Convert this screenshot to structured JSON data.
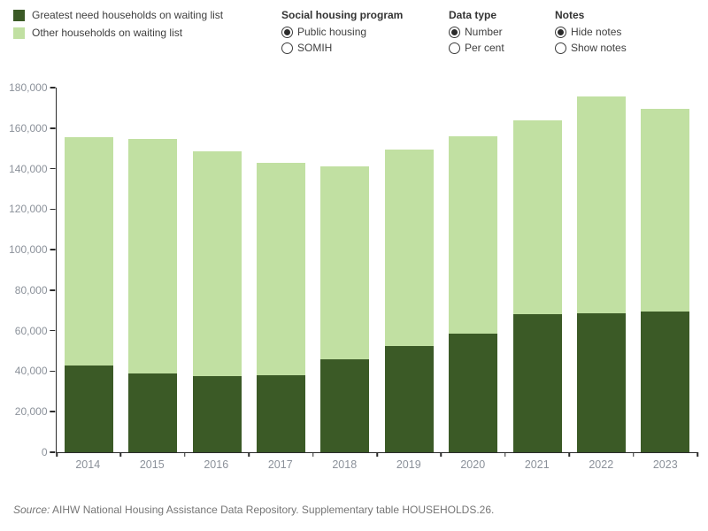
{
  "legend": {
    "items": [
      {
        "label": "Greatest need households on waiting list",
        "color": "#3b5a26"
      },
      {
        "label": "Other households on waiting list",
        "color": "#c1e0a2"
      }
    ]
  },
  "controls": [
    {
      "title": "Social housing program",
      "options": [
        {
          "label": "Public housing",
          "selected": true
        },
        {
          "label": "SOMIH",
          "selected": false
        }
      ]
    },
    {
      "title": "Data type",
      "options": [
        {
          "label": "Number",
          "selected": true
        },
        {
          "label": "Per cent",
          "selected": false
        }
      ]
    },
    {
      "title": "Notes",
      "options": [
        {
          "label": "Hide notes",
          "selected": true
        },
        {
          "label": "Show notes",
          "selected": false
        }
      ]
    }
  ],
  "chart_data": {
    "type": "bar",
    "stacked": true,
    "categories": [
      "2014",
      "2015",
      "2016",
      "2017",
      "2018",
      "2019",
      "2020",
      "2021",
      "2022",
      "2023"
    ],
    "series": [
      {
        "name": "Greatest need households on waiting list",
        "color": "#3b5a26",
        "values": [
          43000,
          39000,
          37500,
          38000,
          46000,
          52500,
          58500,
          68000,
          68500,
          69500
        ]
      },
      {
        "name": "Other households on waiting list",
        "color": "#c1e0a2",
        "values": [
          112500,
          115500,
          111000,
          105000,
          95000,
          97000,
          97500,
          96000,
          107000,
          100000
        ]
      }
    ],
    "totals": [
      155500,
      154500,
      148500,
      143000,
      141000,
      149500,
      156000,
      164000,
      175500,
      169500
    ],
    "title": "",
    "xlabel": "",
    "ylabel": "",
    "ylim": [
      0,
      180000
    ],
    "ytick_step": 20000,
    "grid": false,
    "legend_position": "top-left",
    "axis_color": "#2b2b2b",
    "tick_label_color": "#8b919a"
  },
  "source": {
    "prefix": "Source:",
    "text": " AIHW National Housing Assistance Data Repository. Supplementary table HOUSEHOLDS.26."
  }
}
